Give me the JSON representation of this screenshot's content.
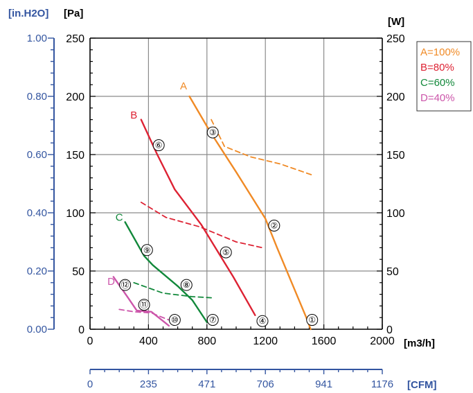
{
  "chart_data": {
    "type": "line",
    "axes": {
      "left_outer": {
        "unit_label": "[in.H2O]",
        "ticks": [
          "1.00",
          "0.80",
          "0.60",
          "0.40",
          "0.20",
          "0.00"
        ]
      },
      "left_inner": {
        "unit_label": "[Pa]",
        "ticks": [
          "250",
          "200",
          "150",
          "100",
          "50",
          "0"
        ]
      },
      "right": {
        "unit_label": "[W]",
        "ticks": [
          "250",
          "200",
          "150",
          "100",
          "50",
          "0"
        ]
      },
      "x_bottom": {
        "unit_label": "[m3/h]",
        "ticks": [
          "0",
          "400",
          "800",
          "1200",
          "1600",
          "2000"
        ],
        "range": [
          0,
          2000
        ]
      },
      "x_cfm": {
        "unit_label": "[CFM]",
        "ticks": [
          "0",
          "235",
          "471",
          "706",
          "941",
          "1176"
        ]
      },
      "ylim": [
        0,
        250
      ]
    },
    "legend": {
      "placement": "top-right",
      "items": [
        {
          "text": "A=100%",
          "color": "#f08a25"
        },
        {
          "text": "B=80%",
          "color": "#dd2233"
        },
        {
          "text": "C=60%",
          "color": "#11883a"
        },
        {
          "text": "D=40%",
          "color": "#cc55aa"
        }
      ]
    },
    "series": [
      {
        "name": "A",
        "kind": "pressure",
        "color": "#f08a25",
        "x": [
          680,
          820,
          1000,
          1200,
          1280,
          1380,
          1480,
          1510
        ],
        "y": [
          200,
          170,
          135,
          95,
          70,
          40,
          10,
          0
        ]
      },
      {
        "name": "A",
        "kind": "power",
        "color": "#f08a25",
        "x": [
          830,
          920,
          1100,
          1300,
          1530
        ],
        "y": [
          180,
          157,
          148,
          142,
          132
        ]
      },
      {
        "name": "B",
        "kind": "pressure",
        "color": "#dd2233",
        "x": [
          350,
          460,
          580,
          760,
          980,
          1130
        ],
        "y": [
          180,
          150,
          120,
          90,
          45,
          12
        ]
      },
      {
        "name": "B",
        "kind": "power",
        "color": "#dd2233",
        "x": [
          350,
          520,
          750,
          1000,
          1180
        ],
        "y": [
          109,
          96,
          88,
          75,
          70
        ]
      },
      {
        "name": "C",
        "kind": "pressure",
        "color": "#11883a",
        "x": [
          240,
          370,
          430,
          600,
          700,
          800
        ],
        "y": [
          92,
          63,
          55,
          37,
          25,
          6
        ]
      },
      {
        "name": "C",
        "kind": "power",
        "color": "#11883a",
        "x": [
          300,
          500,
          700,
          830
        ],
        "y": [
          40,
          31,
          28,
          27
        ]
      },
      {
        "name": "D",
        "kind": "pressure",
        "color": "#cc55aa",
        "x": [
          160,
          260,
          320,
          420,
          520,
          540
        ],
        "y": [
          45,
          27,
          16,
          15,
          5,
          3
        ]
      },
      {
        "name": "D",
        "kind": "power",
        "color": "#cc55aa",
        "x": [
          200,
          300,
          420,
          540
        ],
        "y": [
          17,
          15,
          14,
          8
        ]
      }
    ],
    "curve_labels": [
      {
        "text": "A",
        "x": 640,
        "y": 209,
        "color": "#f08a25"
      },
      {
        "text": "B",
        "x": 300,
        "y": 184,
        "color": "#dd2233"
      },
      {
        "text": "C",
        "x": 200,
        "y": 96,
        "color": "#11883a"
      },
      {
        "text": "D",
        "x": 145,
        "y": 41,
        "color": "#cc55aa"
      }
    ],
    "markers": [
      {
        "text": "①",
        "x": 1520,
        "y": 8
      },
      {
        "text": "②",
        "x": 1260,
        "y": 89
      },
      {
        "text": "③",
        "x": 840,
        "y": 169
      },
      {
        "text": "④",
        "x": 1180,
        "y": 7
      },
      {
        "text": "⑤",
        "x": 930,
        "y": 66
      },
      {
        "text": "⑥",
        "x": 470,
        "y": 158
      },
      {
        "text": "⑦",
        "x": 840,
        "y": 8
      },
      {
        "text": "⑧",
        "x": 660,
        "y": 38
      },
      {
        "text": "⑨",
        "x": 390,
        "y": 68
      },
      {
        "text": "⑩",
        "x": 580,
        "y": 8
      },
      {
        "text": "⑪",
        "x": 370,
        "y": 21
      },
      {
        "text": "⑫",
        "x": 240,
        "y": 38
      }
    ]
  }
}
